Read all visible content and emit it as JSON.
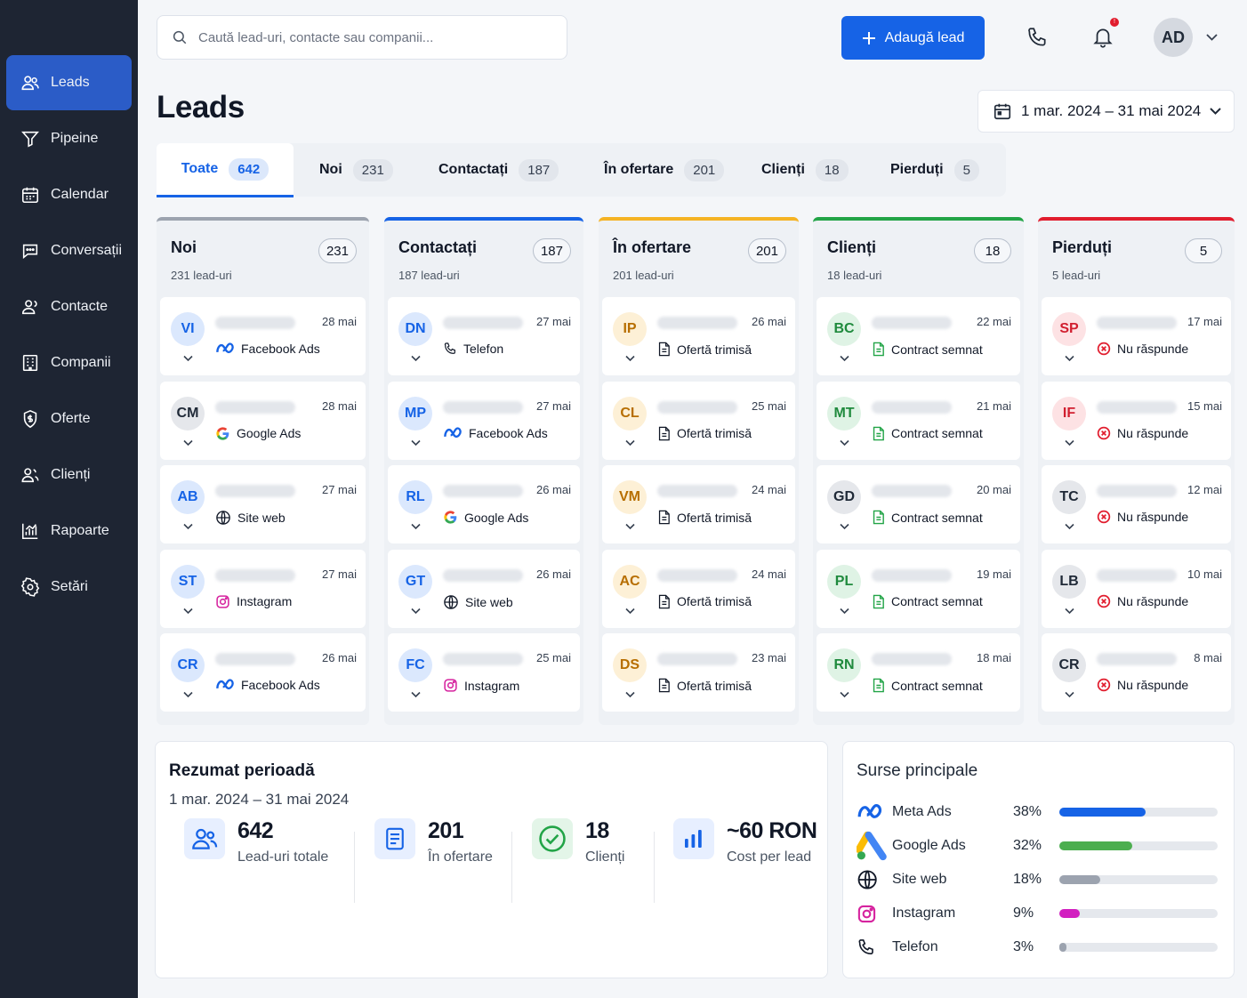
{
  "sidebar": {
    "items": [
      {
        "label": "Leads",
        "icon": "users-icon"
      },
      {
        "label": "Pipeine",
        "icon": "funnel-icon"
      },
      {
        "label": "Calendar",
        "icon": "calendar-icon"
      },
      {
        "label": "Conversații",
        "icon": "chat-icon"
      },
      {
        "label": "Contacte",
        "icon": "contacts-icon"
      },
      {
        "label": "Companii",
        "icon": "building-icon"
      },
      {
        "label": "Oferte",
        "icon": "offer-icon"
      },
      {
        "label": "Clienți",
        "icon": "clients-icon"
      },
      {
        "label": "Rapoarte",
        "icon": "chart-icon"
      },
      {
        "label": "Setări",
        "icon": "gear-icon"
      }
    ]
  },
  "header": {
    "search_placeholder": "Caută lead-uri, contacte sau companii...",
    "add_button": "Adaugă lead",
    "notification_count": "!",
    "avatar_initials": "AD"
  },
  "page": {
    "title": "Leads",
    "date_range": "1 mar. 2024 – 31 mai 2024"
  },
  "tabs": [
    {
      "label": "Toate",
      "count": "642"
    },
    {
      "label": "Noi",
      "count": "231"
    },
    {
      "label": "Contactați",
      "count": "187"
    },
    {
      "label": "În ofertare",
      "count": "201"
    },
    {
      "label": "Clienți",
      "count": "18"
    },
    {
      "label": "Pierduți",
      "count": "5"
    }
  ],
  "columns": [
    {
      "title": "Noi",
      "count": "231",
      "subtitle": "231 lead-uri",
      "color": "#9ca3af",
      "cards": [
        {
          "initials": "VI",
          "date": "28 mai",
          "source": "Facebook Ads",
          "icon": "meta"
        },
        {
          "initials": "CM",
          "date": "28 mai",
          "source": "Google Ads",
          "icon": "google"
        },
        {
          "initials": "AB",
          "date": "27 mai",
          "source": "Site web",
          "icon": "globe"
        },
        {
          "initials": "ST",
          "date": "27 mai",
          "source": "Instagram",
          "icon": "instagram"
        },
        {
          "initials": "CR",
          "date": "26 mai",
          "source": "Facebook Ads",
          "icon": "meta"
        }
      ]
    },
    {
      "title": "Contactați",
      "count": "187",
      "subtitle": "187 lead-uri",
      "color": "#1663e6",
      "cards": [
        {
          "initials": "DN",
          "date": "27 mai",
          "source": "Telefon",
          "icon": "phone"
        },
        {
          "initials": "MP",
          "date": "27 mai",
          "source": "Facebook Ads",
          "icon": "meta"
        },
        {
          "initials": "RL",
          "date": "26 mai",
          "source": "Google Ads",
          "icon": "google"
        },
        {
          "initials": "GT",
          "date": "26 mai",
          "source": "Site web",
          "icon": "globe"
        },
        {
          "initials": "FC",
          "date": "25 mai",
          "source": "Instagram",
          "icon": "instagram"
        }
      ]
    },
    {
      "title": "În ofertare",
      "count": "201",
      "subtitle": "201 lead-uri",
      "color": "#f5b324",
      "cards": [
        {
          "initials": "IP",
          "date": "26 mai",
          "source": "Ofertă trimisă",
          "icon": "doc"
        },
        {
          "initials": "CL",
          "date": "25 mai",
          "source": "Ofertă trimisă",
          "icon": "doc"
        },
        {
          "initials": "VM",
          "date": "24 mai",
          "source": "Ofertă trimisă",
          "icon": "doc"
        },
        {
          "initials": "AC",
          "date": "24 mai",
          "source": "Ofertă trimisă",
          "icon": "doc"
        },
        {
          "initials": "DS",
          "date": "23 mai",
          "source": "Ofertă trimisă",
          "icon": "doc"
        }
      ]
    },
    {
      "title": "Clienți",
      "count": "18",
      "subtitle": "18 lead-uri",
      "color": "#22a447",
      "cards": [
        {
          "initials": "BC",
          "date": "22 mai",
          "source": "Contract semnat",
          "icon": "contract"
        },
        {
          "initials": "MT",
          "date": "21 mai",
          "source": "Contract semnat",
          "icon": "contract"
        },
        {
          "initials": "GD",
          "date": "20 mai",
          "source": "Contract semnat",
          "icon": "contract"
        },
        {
          "initials": "PL",
          "date": "19 mai",
          "source": "Contract semnat",
          "icon": "contract"
        },
        {
          "initials": "RN",
          "date": "18 mai",
          "source": "Contract semnat",
          "icon": "contract"
        }
      ]
    },
    {
      "title": "Pierduți",
      "count": "5",
      "subtitle": "5 lead-uri",
      "color": "#e11d2e",
      "cards": [
        {
          "initials": "SP",
          "date": "17 mai",
          "source": "Nu răspunde",
          "icon": "x"
        },
        {
          "initials": "IF",
          "date": "15 mai",
          "source": "Nu răspunde",
          "icon": "x"
        },
        {
          "initials": "TC",
          "date": "12 mai",
          "source": "Nu răspunde",
          "icon": "x"
        },
        {
          "initials": "LB",
          "date": "10 mai",
          "source": "Nu răspunde",
          "icon": "x"
        },
        {
          "initials": "CR",
          "date": "8 mai",
          "source": "Nu răspunde",
          "icon": "x"
        }
      ]
    }
  ],
  "summary": {
    "title": "Rezumat perioadă",
    "range": "1 mar. 2024 – 31 mai 2024",
    "stats": [
      {
        "value": "642",
        "label": "Lead-uri totale",
        "icon": "users-icon"
      },
      {
        "value": "201",
        "label": "În ofertare",
        "icon": "document-icon"
      },
      {
        "value": "18",
        "label": "Clienți",
        "icon": "check-circle-icon"
      },
      {
        "value": "~60 RON",
        "label": "Cost per lead",
        "icon": "bar-chart-icon"
      }
    ]
  },
  "sources": {
    "title": "Surse principale",
    "items": [
      {
        "name": "Meta Ads",
        "percent": "38%",
        "value": 38,
        "color": "#1663e6",
        "icon": "meta"
      },
      {
        "name": "Google Ads",
        "percent": "32%",
        "value": 32,
        "color": "#4cae4f",
        "icon": "google-ads"
      },
      {
        "name": "Site web",
        "percent": "18%",
        "value": 18,
        "color": "#9ca3af",
        "icon": "globe"
      },
      {
        "name": "Instagram",
        "percent": "9%",
        "value": 9,
        "color": "#d21fc0",
        "icon": "instagram"
      },
      {
        "name": "Telefon",
        "percent": "3%",
        "value": 3,
        "color": "#9ca3af",
        "icon": "phone"
      }
    ]
  }
}
